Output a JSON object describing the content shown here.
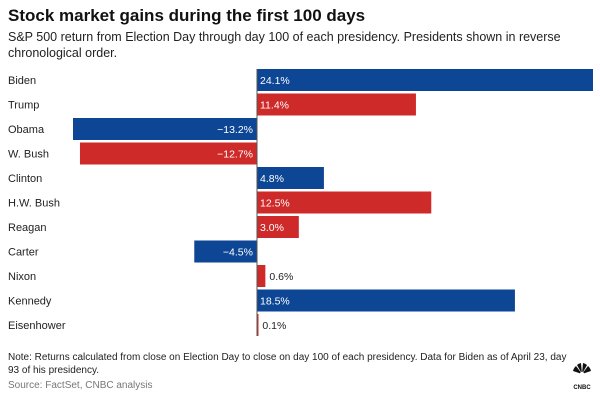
{
  "chart_data": {
    "type": "bar",
    "orientation": "horizontal",
    "title": "Stock market gains during the first 100 days",
    "subtitle": "S&P 500 return from Election Day through day 100 of each presidency. Presidents shown in reverse chronological order.",
    "categories": [
      "Biden",
      "Trump",
      "Obama",
      "W. Bush",
      "Clinton",
      "H.W. Bush",
      "Reagan",
      "Carter",
      "Nixon",
      "Kennedy",
      "Eisenhower"
    ],
    "values": [
      24.1,
      11.4,
      -13.2,
      -12.7,
      4.8,
      12.5,
      3.0,
      -4.5,
      0.6,
      18.5,
      0.1
    ],
    "labels": [
      "24.1%",
      "11.4%",
      "−13.2%",
      "−12.7%",
      "4.8%",
      "12.5%",
      "3.0%",
      "−4.5%",
      "0.6%",
      "18.5%",
      "0.1%"
    ],
    "bar_colors": [
      "#0d4694",
      "#cf2a2a",
      "#0d4694",
      "#cf2a2a",
      "#0d4694",
      "#cf2a2a",
      "#cf2a2a",
      "#0d4694",
      "#cf2a2a",
      "#0d4694",
      "#cf2a2a"
    ],
    "party_colors": {
      "democrat": "#0d4694",
      "republican": "#cf2a2a"
    },
    "xlim": [
      -13.2,
      24.1
    ],
    "grid": false,
    "legend": "none"
  },
  "note": "Note: Returns calculated from close on Election Day to close on day 100 of each presidency. Data for Biden as of April 23, day 93 of his presidency.",
  "source": "Source: FactSet, CNBC analysis",
  "logo_text": "CNBC"
}
